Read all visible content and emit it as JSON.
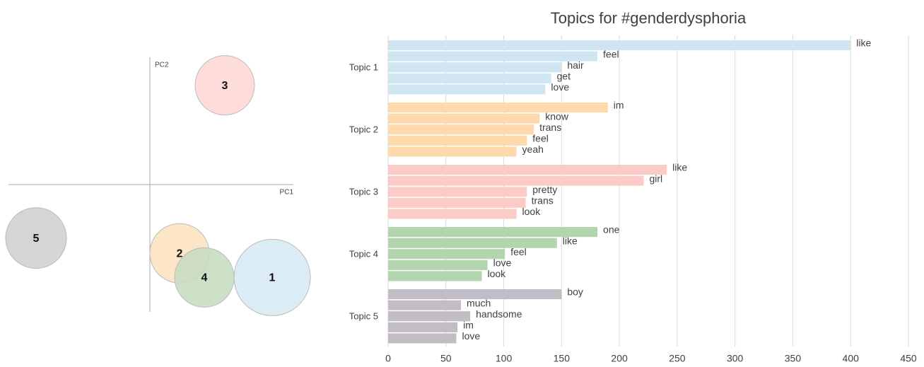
{
  "chart_data": [
    {
      "type": "scatter",
      "x_label": "PC1",
      "y_label": "PC2",
      "xlim": [
        -1,
        1
      ],
      "ylim": [
        -1,
        1
      ],
      "labels": [
        "1",
        "2",
        "3",
        "4",
        "5"
      ],
      "x": [
        0.865,
        0.21,
        0.53,
        0.385,
        -0.805
      ],
      "y": [
        -0.73,
        -0.54,
        0.78,
        -0.73,
        -0.42
      ],
      "sizes": [
        54,
        42,
        42,
        42,
        43
      ],
      "colors": [
        "#d6e9f3",
        "#fde0bd",
        "#fdd6d2",
        "#c4dcc0",
        "#cfcccf"
      ]
    },
    {
      "type": "bar",
      "title": "Topics for #genderdysphoria",
      "xlim": [
        0,
        450
      ],
      "xticks": [
        0,
        50,
        100,
        150,
        200,
        250,
        300,
        350,
        400,
        450
      ],
      "grid": true,
      "groups": [
        {
          "name": "Topic 1",
          "color": "#cfe5f2",
          "words": [
            "like",
            "feel",
            "hair",
            "get",
            "love"
          ],
          "values": [
            400,
            181,
            150,
            141,
            136
          ]
        },
        {
          "name": "Topic 2",
          "color": "#fdd9ac",
          "words": [
            "im",
            "know",
            "trans",
            "feel",
            "yeah"
          ],
          "values": [
            190,
            131,
            126,
            120,
            111
          ]
        },
        {
          "name": "Topic 3",
          "color": "#fdcbc7",
          "words": [
            "like",
            "girl",
            "pretty",
            "trans",
            "look"
          ],
          "values": [
            241,
            221,
            120,
            119,
            111
          ]
        },
        {
          "name": "Topic 4",
          "color": "#b2d4ae",
          "words": [
            "one",
            "like",
            "feel",
            "love",
            "look"
          ],
          "values": [
            181,
            146,
            101,
            86,
            81
          ]
        },
        {
          "name": "Topic 5",
          "color": "#c2bdc4",
          "words": [
            "boy",
            "much",
            "handsome",
            "im",
            "love"
          ],
          "values": [
            150,
            63,
            71,
            60,
            59
          ]
        }
      ]
    }
  ]
}
